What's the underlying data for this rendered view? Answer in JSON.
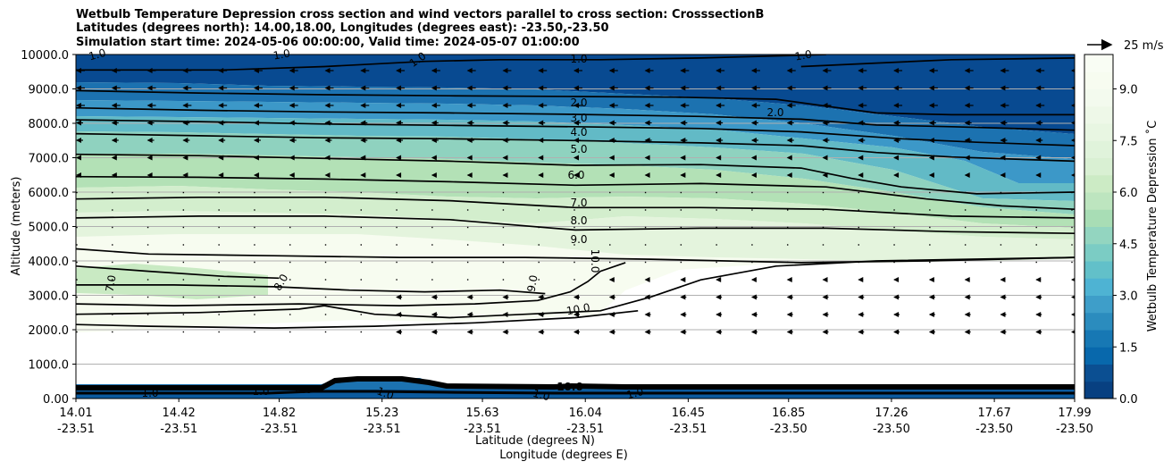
{
  "chart_data": {
    "type": "contour",
    "title": [
      "Wetbulb Temperature Depression cross section and wind vectors parallel to cross section: CrosssectionB",
      "Latitudes (degrees north): 14.00,18.00, Longitudes (degrees east): -23.50,-23.50",
      "Simulation start time: 2024-05-06 00:00:00, Valid time: 2024-05-07 01:00:00"
    ],
    "xlabel_lat": "Latitude (degrees N)",
    "xlabel_lon": "Longitude (degrees E)",
    "ylabel": "Altitude (meters)",
    "ylim": [
      0,
      10000
    ],
    "y_ticks": [
      0,
      1000,
      2000,
      3000,
      4000,
      5000,
      6000,
      7000,
      8000,
      9000,
      10000
    ],
    "y_tick_labels": [
      "0.00",
      "1000.0",
      "2000.0",
      "3000.0",
      "4000.0",
      "5000.0",
      "6000.0",
      "7000.0",
      "8000.0",
      "9000.0",
      "10000.0"
    ],
    "x_tick_lat": [
      "14.01",
      "14.42",
      "14.82",
      "15.23",
      "15.63",
      "16.04",
      "16.45",
      "16.85",
      "17.26",
      "17.67",
      "17.99"
    ],
    "x_tick_lon": [
      "-23.51",
      "-23.51",
      "-23.51",
      "-23.51",
      "-23.51",
      "-23.51",
      "-23.51",
      "-23.50",
      "-23.50",
      "-23.50",
      "-23.50"
    ],
    "colorbar": {
      "label": "Wetbulb Temperature Depression ˚C",
      "min": 0,
      "max": 10,
      "ticks": [
        "0.0",
        "1.5",
        "3.0",
        "4.5",
        "6.0",
        "7.5",
        "9.0"
      ],
      "tick_values": [
        0,
        1.5,
        3,
        4.5,
        6,
        7.5,
        9
      ]
    },
    "quiver_key": "25 m/s",
    "contour_levels": [
      1.0,
      2.0,
      3.0,
      4.0,
      5.0,
      6.0,
      7.0,
      8.0,
      9.0,
      10.0
    ],
    "contour_labels": [
      {
        "text": "1.0"
      },
      {
        "text": "1.0"
      },
      {
        "text": "1.0"
      },
      {
        "text": "1.0"
      },
      {
        "text": "1.0"
      },
      {
        "text": "2.0"
      },
      {
        "text": "2.0"
      },
      {
        "text": "3.0"
      },
      {
        "text": "4.0"
      },
      {
        "text": "5.0"
      },
      {
        "text": "6.0"
      },
      {
        "text": "7.0"
      },
      {
        "text": "8.0"
      },
      {
        "text": "9.0"
      },
      {
        "text": "10.0"
      },
      {
        "text": "10.0"
      },
      {
        "text": "7.0"
      },
      {
        "text": "8.0"
      },
      {
        "text": "9.0"
      },
      {
        "text": "1.0"
      },
      {
        "text": "1.0"
      },
      {
        "text": "1.0"
      },
      {
        "text": "1.0"
      },
      {
        "text": "1.0"
      },
      {
        "text": "10.0"
      },
      {
        "text": "8.0"
      }
    ],
    "contour_lines": [
      {
        "level": 2.0,
        "pts": [
          [
            14.01,
            8950
          ],
          [
            14.5,
            8880
          ],
          [
            15.0,
            8830
          ],
          [
            15.5,
            8800
          ],
          [
            16.0,
            8780
          ],
          [
            16.4,
            8760
          ],
          [
            16.8,
            8700
          ],
          [
            17.0,
            8500
          ],
          [
            17.2,
            8300
          ],
          [
            17.5,
            8250
          ],
          [
            17.99,
            8250
          ]
        ]
      },
      {
        "level": 3.0,
        "pts": [
          [
            14.01,
            8450
          ],
          [
            14.5,
            8380
          ],
          [
            15.0,
            8330
          ],
          [
            15.5,
            8300
          ],
          [
            16.0,
            8260
          ],
          [
            16.5,
            8200
          ],
          [
            16.9,
            8120
          ],
          [
            17.2,
            7950
          ],
          [
            17.5,
            7900
          ],
          [
            17.99,
            7800
          ]
        ]
      },
      {
        "level": 4.0,
        "pts": [
          [
            14.01,
            8100
          ],
          [
            14.5,
            8050
          ],
          [
            15.0,
            7980
          ],
          [
            15.5,
            7940
          ],
          [
            16.0,
            7900
          ],
          [
            16.5,
            7850
          ],
          [
            16.9,
            7750
          ],
          [
            17.3,
            7550
          ],
          [
            17.6,
            7450
          ],
          [
            17.99,
            7350
          ]
        ]
      },
      {
        "level": 5.0,
        "pts": [
          [
            14.01,
            7700
          ],
          [
            14.5,
            7640
          ],
          [
            15.0,
            7580
          ],
          [
            15.5,
            7550
          ],
          [
            16.0,
            7500
          ],
          [
            16.5,
            7430
          ],
          [
            16.9,
            7350
          ],
          [
            17.2,
            7150
          ],
          [
            17.5,
            7020
          ],
          [
            17.99,
            6900
          ]
        ]
      },
      {
        "level": 6.0,
        "pts": [
          [
            14.01,
            7100
          ],
          [
            14.5,
            7060
          ],
          [
            15.0,
            6980
          ],
          [
            15.5,
            6900
          ],
          [
            16.0,
            6780
          ],
          [
            16.5,
            6800
          ],
          [
            16.9,
            6700
          ],
          [
            17.1,
            6400
          ],
          [
            17.3,
            6150
          ],
          [
            17.6,
            5950
          ],
          [
            17.99,
            6000
          ]
        ]
      },
      {
        "level": 7.0,
        "pts": [
          [
            14.01,
            6450
          ],
          [
            14.5,
            6430
          ],
          [
            15.0,
            6380
          ],
          [
            15.5,
            6300
          ],
          [
            16.0,
            6200
          ],
          [
            16.5,
            6250
          ],
          [
            17.0,
            6150
          ],
          [
            17.4,
            5800
          ],
          [
            17.7,
            5600
          ],
          [
            17.99,
            5500
          ]
        ]
      },
      {
        "level": 8.0,
        "pts": [
          [
            14.01,
            5800
          ],
          [
            14.5,
            5850
          ],
          [
            15.0,
            5850
          ],
          [
            15.5,
            5750
          ],
          [
            16.0,
            5550
          ],
          [
            16.5,
            5550
          ],
          [
            17.0,
            5500
          ],
          [
            17.5,
            5300
          ],
          [
            17.99,
            5250
          ]
        ]
      },
      {
        "level": 9.0,
        "pts": [
          [
            14.01,
            5250
          ],
          [
            14.5,
            5300
          ],
          [
            15.0,
            5300
          ],
          [
            15.5,
            5200
          ],
          [
            16.0,
            4900
          ],
          [
            16.5,
            4950
          ],
          [
            17.0,
            4950
          ],
          [
            17.5,
            4850
          ],
          [
            17.99,
            4800
          ]
        ]
      },
      {
        "level": 10.0,
        "pts": [
          [
            14.01,
            4350
          ],
          [
            14.3,
            4200
          ],
          [
            14.8,
            4150
          ],
          [
            15.3,
            4100
          ],
          [
            15.8,
            4100
          ],
          [
            16.3,
            4050
          ],
          [
            16.9,
            3950
          ],
          [
            17.4,
            4000
          ],
          [
            17.99,
            4100
          ]
        ]
      },
      {
        "level": 7.0,
        "pts": [
          [
            14.01,
            3850
          ],
          [
            14.3,
            3700
          ],
          [
            14.6,
            3550
          ],
          [
            14.82,
            3500
          ]
        ]
      },
      {
        "level": 8.0,
        "pts": [
          [
            14.01,
            3300
          ],
          [
            14.4,
            3300
          ],
          [
            14.8,
            3250
          ],
          [
            15.1,
            3150
          ],
          [
            15.4,
            3100
          ],
          [
            15.7,
            3150
          ],
          [
            15.88,
            3050
          ]
        ]
      },
      {
        "level": 9.0,
        "pts": [
          [
            14.01,
            2750
          ],
          [
            14.4,
            2700
          ],
          [
            14.9,
            2750
          ],
          [
            15.3,
            2700
          ],
          [
            15.6,
            2750
          ],
          [
            15.85,
            2850
          ],
          [
            15.98,
            3100
          ],
          [
            16.05,
            3400
          ],
          [
            16.1,
            3700
          ],
          [
            16.2,
            3950
          ]
        ]
      },
      {
        "level": 10.0,
        "pts": [
          [
            14.01,
            2450
          ],
          [
            14.5,
            2500
          ],
          [
            14.9,
            2600
          ],
          [
            15.0,
            2700
          ],
          [
            15.2,
            2450
          ],
          [
            15.5,
            2350
          ],
          [
            15.8,
            2450
          ],
          [
            16.1,
            2550
          ],
          [
            16.3,
            2950
          ],
          [
            16.5,
            3450
          ],
          [
            16.8,
            3850
          ],
          [
            17.2,
            4000
          ],
          [
            17.99,
            4100
          ]
        ]
      },
      {
        "level": 10.0,
        "pts": [
          [
            14.01,
            2150
          ],
          [
            14.3,
            2100
          ],
          [
            14.8,
            2050
          ],
          [
            15.2,
            2100
          ],
          [
            15.6,
            2200
          ],
          [
            16.0,
            2350
          ],
          [
            16.25,
            2550
          ]
        ]
      },
      {
        "level": 1.0,
        "pts": [
          [
            14.01,
            9550
          ],
          [
            14.6,
            9550
          ],
          [
            15.0,
            9650
          ],
          [
            15.4,
            9800
          ],
          [
            15.7,
            9850
          ],
          [
            16.1,
            9850
          ],
          [
            16.5,
            9900
          ],
          [
            17.0,
            10000
          ]
        ]
      },
      {
        "level": 1.0,
        "pts": [
          [
            16.9,
            9650
          ],
          [
            17.2,
            9750
          ],
          [
            17.5,
            9850
          ],
          [
            17.99,
            9900
          ]
        ]
      }
    ]
  }
}
